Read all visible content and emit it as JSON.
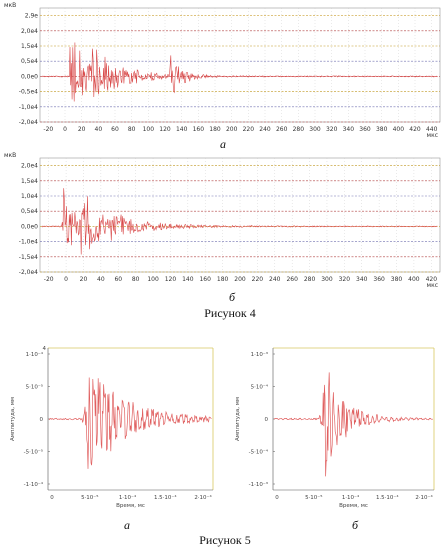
{
  "figure4": {
    "caption": "Рисунок 4",
    "panels": [
      {
        "label": "а",
        "y_unit": "мкВ",
        "x_unit": "мкс",
        "y_ticks": [
          "2,9e",
          "2,0e4",
          "1,5e4",
          "0,5e4",
          "0,0e0",
          "-0,5e4",
          "-1,0e4",
          "-2,0e4"
        ],
        "x_ticks": [
          "-20",
          "0",
          "20",
          "40",
          "60",
          "80",
          "100",
          "120",
          "140",
          "160",
          "180",
          "200",
          "220",
          "240",
          "260",
          "280",
          "300",
          "320",
          "340",
          "360",
          "380",
          "400",
          "420",
          "440"
        ],
        "colors": {
          "trace": "#d84848",
          "grid_h": [
            "#caa030",
            "#b04040",
            "#c09820",
            "#7070b0",
            "#b04040",
            "#c09820",
            "#7070b0",
            "#b04040"
          ],
          "grid_v": "#c8c8c8"
        }
      },
      {
        "label": "б",
        "y_unit": "мкВ",
        "x_unit": "мкс",
        "y_ticks": [
          "2,0e4",
          "1,5e4",
          "1,0e4",
          "0,5e4",
          "0,0e0",
          "-1,0e4",
          "-1,5e4",
          "-2,0e4"
        ],
        "x_ticks": [
          "-20",
          "0",
          "20",
          "40",
          "60",
          "80",
          "100",
          "120",
          "140",
          "160",
          "180",
          "200",
          "220",
          "240",
          "260",
          "280",
          "300",
          "320",
          "340",
          "360",
          "380",
          "400",
          "420"
        ],
        "colors": {
          "trace": "#d84848",
          "grid_h": [
            "#c09820",
            "#b04040",
            "#7070b0",
            "#b04040",
            "#c09820",
            "#7070b0",
            "#b04040",
            "#c09820"
          ],
          "grid_v": "#c8c8c8"
        }
      }
    ]
  },
  "figure5": {
    "caption": "Рисунок 5",
    "panels": [
      {
        "label": "а",
        "y_label": "Амплитуда, мм",
        "x_label": "Время, мс",
        "exp_top": "4",
        "y_ticks": [
          "1·10⁻⁴",
          "5·10⁻⁵",
          "0",
          "-5·10⁻⁵",
          "-1·10⁻⁴"
        ],
        "x_ticks": [
          "0",
          "5·10⁻⁵",
          "1·10⁻⁴",
          "1.5·10⁻⁴",
          "2·10⁻⁴"
        ],
        "colors": {
          "trace": "#e06060",
          "frame_top": "#d8c860"
        }
      },
      {
        "label": "б",
        "y_label": "Амплитуда, мм",
        "x_label": "Время, мс",
        "y_ticks": [
          "1·10⁻³",
          "5·10⁻⁴",
          "0",
          "-5·10⁻⁴",
          "-1·10⁻³"
        ],
        "x_ticks": [
          "0",
          "5·10⁻⁵",
          "1·10⁻⁴",
          "1.5·10⁻⁴",
          "2·10⁻⁴"
        ],
        "colors": {
          "trace": "#e06060",
          "frame_top": "#d8c860"
        }
      }
    ]
  }
}
